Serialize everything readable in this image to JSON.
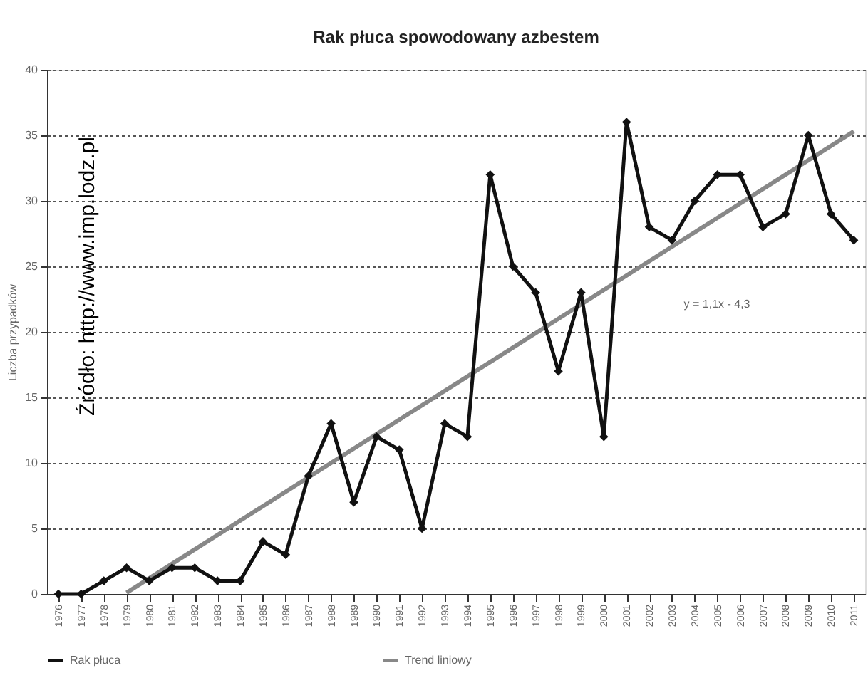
{
  "chart_data": {
    "type": "line",
    "title": "Rak płuca spowodowany azbestem",
    "ylabel": "Liczba przypadków",
    "categories": [
      "1976",
      "1977",
      "1978",
      "1979",
      "1980",
      "1981",
      "1982",
      "1983",
      "1984",
      "1985",
      "1986",
      "1987",
      "1988",
      "1989",
      "1990",
      "1991",
      "1992",
      "1993",
      "1994",
      "1995",
      "1996",
      "1997",
      "1998",
      "1999",
      "2000",
      "2001",
      "2002",
      "2003",
      "2004",
      "2005",
      "2006",
      "2007",
      "2008",
      "2009",
      "2010",
      "2011"
    ],
    "series": [
      {
        "name": "Rak płuca",
        "color": "#111111",
        "marker": "diamond",
        "values": [
          0,
          0,
          1,
          2,
          1,
          2,
          2,
          1,
          1,
          4,
          3,
          9,
          13,
          7,
          12,
          11,
          5,
          13,
          12,
          32,
          25,
          23,
          17,
          23,
          12,
          36,
          28,
          27,
          30,
          32,
          32,
          28,
          29,
          35,
          29,
          27
        ]
      },
      {
        "name": "Trend liniowy",
        "color": "#888888",
        "marker": "none",
        "values": [
          null,
          null,
          null,
          0.1,
          null,
          null,
          null,
          null,
          null,
          null,
          null,
          null,
          null,
          null,
          null,
          null,
          null,
          null,
          null,
          null,
          null,
          null,
          null,
          null,
          null,
          null,
          null,
          null,
          null,
          null,
          null,
          null,
          null,
          null,
          null,
          35.3
        ]
      }
    ],
    "ylim": [
      0,
      40
    ],
    "yticks": [
      0,
      5,
      10,
      15,
      20,
      25,
      30,
      35,
      40
    ],
    "grid": "y",
    "legend": "bottom",
    "annotations": [
      "y = 1,1x - 4,3",
      "Źródło: http://www.imp.lodz.pl"
    ]
  }
}
